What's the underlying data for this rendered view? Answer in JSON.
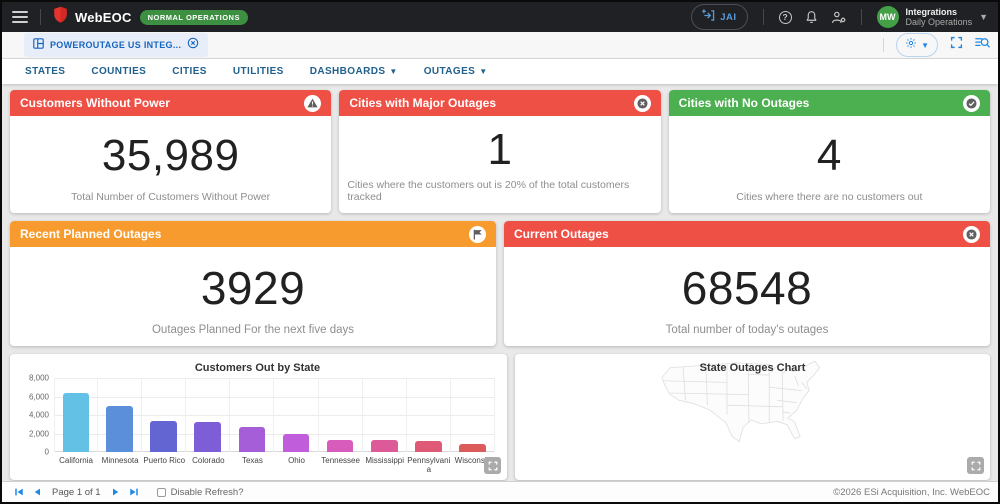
{
  "header": {
    "app_name": "WebEOC",
    "status_badge": "NORMAL OPERATIONS",
    "jai_button": "JAI",
    "user": {
      "initials": "MW",
      "org": "Integrations",
      "role": "Daily Operations"
    }
  },
  "tab_bar": {
    "active_tab": "POWEROUTAGE US INTEG..."
  },
  "nav": {
    "items": [
      {
        "label": "STATES",
        "caret": false
      },
      {
        "label": "COUNTIES",
        "caret": false
      },
      {
        "label": "CITIES",
        "caret": false
      },
      {
        "label": "UTILITIES",
        "caret": false
      },
      {
        "label": "DASHBOARDS",
        "caret": true
      },
      {
        "label": "OUTAGES",
        "caret": true
      }
    ]
  },
  "cards": {
    "customers_without_power": {
      "title": "Customers Without Power",
      "value": "35,989",
      "subtitle": "Total Number of Customers Without Power",
      "header_color": "#ef5046",
      "icon": "warning-icon"
    },
    "cities_major_outages": {
      "title": "Cities with Major Outages",
      "value": "1",
      "subtitle": "Cities where the customers out is 20% of the total customers tracked",
      "header_color": "#ef5046",
      "icon": "cancel-icon"
    },
    "cities_no_outages": {
      "title": "Cities with No Outages",
      "value": "4",
      "subtitle": "Cities where there are no customers out",
      "header_color": "#4caf50",
      "icon": "check-icon"
    },
    "recent_planned_outages": {
      "title": "Recent Planned Outages",
      "value": "3929",
      "subtitle": "Outages Planned For the next five days",
      "header_color": "#f89b2e",
      "icon": "flag-icon"
    },
    "current_outages": {
      "title": "Current Outages",
      "value": "68548",
      "subtitle": "Total number of today's outages",
      "header_color": "#ef5046",
      "icon": "cancel-icon"
    }
  },
  "map_panel": {
    "title": "State Outages Chart"
  },
  "chart_data": {
    "type": "bar",
    "title": "Customers Out by State",
    "categories": [
      "California",
      "Minnesota",
      "Puerto Rico",
      "Colorado",
      "Texas",
      "Ohio",
      "Tennessee",
      "Mississippi",
      "Pennsylvania",
      "Wisconsin"
    ],
    "values": [
      6400,
      4950,
      3350,
      3200,
      2700,
      2000,
      1300,
      1250,
      1150,
      900
    ],
    "bar_colors": [
      "#62c1e5",
      "#5b8fd9",
      "#6365d2",
      "#7e5ed6",
      "#a55ed8",
      "#c05ddb",
      "#d75cbb",
      "#dc5a97",
      "#de5a76",
      "#dc5b5b"
    ],
    "xlabel": "",
    "ylabel": "",
    "ylim": [
      0,
      8000
    ],
    "yticks": [
      0,
      2000,
      4000,
      6000,
      8000
    ],
    "ytick_labels": [
      "0",
      "2,000",
      "4,000",
      "6,000",
      "8,000"
    ],
    "grid": true,
    "legend": false
  },
  "footer": {
    "page_status": "Page 1 of 1",
    "disable_refresh_label": "Disable Refresh?",
    "copyright": "©2026 ESi Acquisition, Inc. WebEOC"
  },
  "colors": {
    "alert_red": "#ef5046",
    "ok_green": "#4caf50",
    "warn_orange": "#f89b2e",
    "accent_blue": "#1e88e5",
    "nav_blue": "#21618c",
    "badge_green": "#3d8f42",
    "avatar_green": "#43a047",
    "topbar_dark": "#202124"
  }
}
